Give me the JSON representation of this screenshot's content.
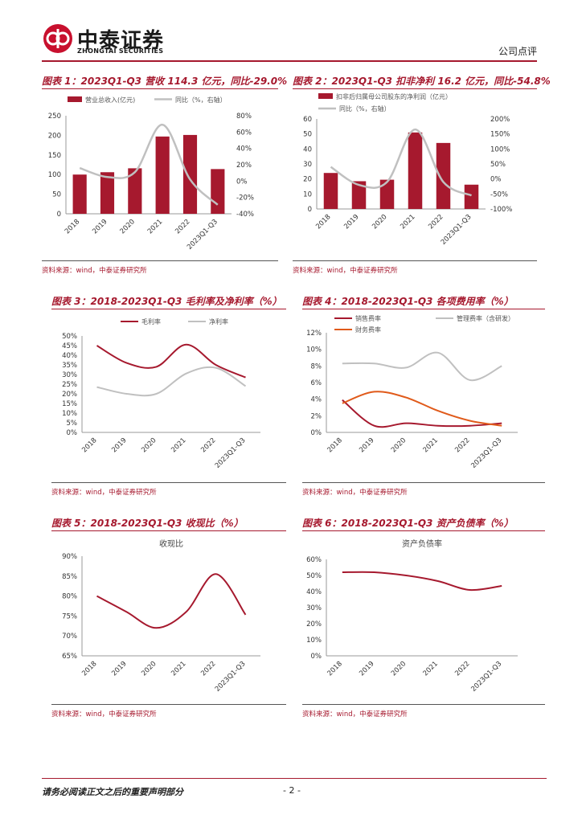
{
  "header": {
    "logo_cn": "中泰证券",
    "logo_en": "ZHONGTAI SECURITIES",
    "report_type": "公司点评"
  },
  "source_text": "资料来源：wind，中泰证券研究所",
  "footer": {
    "note": "请务必阅读正文之后的重要声明部分",
    "page": "- 2 -"
  },
  "colors": {
    "brand": "#a6192e",
    "gray": "#c0c0c0",
    "orange": "#e05a1a"
  },
  "chart_data": [
    {
      "id": "c1",
      "type": "bar-line",
      "title": "图表 1：2023Q1-Q3 营收 114.3 亿元，同比-29.0%",
      "categories": [
        "2018",
        "2019",
        "2020",
        "2021",
        "2022",
        "2023Q1-Q3"
      ],
      "series": [
        {
          "name": "营业总收入(亿元)",
          "kind": "bar",
          "axis": "left",
          "values": [
            100,
            106,
            116,
            197,
            201,
            114
          ]
        },
        {
          "name": "同比（%，右轴）",
          "kind": "line",
          "axis": "right",
          "values": [
            16,
            5,
            11,
            69,
            2,
            -29
          ]
        }
      ],
      "yleft": {
        "min": 0,
        "max": 250,
        "step": 50,
        "ticks": [
          "0",
          "50",
          "100",
          "150",
          "200",
          "250"
        ]
      },
      "yright": {
        "min": -40,
        "max": 80,
        "step": 20,
        "ticks": [
          "-40%",
          "-20%",
          "0%",
          "20%",
          "40%",
          "60%",
          "80%"
        ]
      }
    },
    {
      "id": "c2",
      "type": "bar-line",
      "title": "图表 2：2023Q1-Q3 扣非净利 16.2 亿元，同比-54.8%",
      "categories": [
        "2018",
        "2019",
        "2020",
        "2021",
        "2022",
        "2023Q1-Q3"
      ],
      "series": [
        {
          "name": "扣非后归属母公司股东的净利润（亿元）",
          "kind": "bar",
          "axis": "left",
          "values": [
            24,
            18.5,
            19.5,
            51,
            44,
            16.2
          ]
        },
        {
          "name": "同比（%，右轴）",
          "kind": "line",
          "axis": "right",
          "values": [
            40,
            -20,
            -10,
            165,
            -10,
            -55
          ]
        }
      ],
      "yleft": {
        "min": 0,
        "max": 60,
        "step": 10,
        "ticks": [
          "0",
          "10",
          "20",
          "30",
          "40",
          "50",
          "60"
        ]
      },
      "yright": {
        "min": -100,
        "max": 200,
        "step": 50,
        "ticks": [
          "-100%",
          "-50%",
          "0%",
          "50%",
          "100%",
          "150%",
          "200%"
        ]
      }
    },
    {
      "id": "c3",
      "type": "line",
      "title": "图表 3：2018-2023Q1-Q3 毛利率及净利率（%）",
      "categories": [
        "2018",
        "2019",
        "2020",
        "2021",
        "2022",
        "2023Q1-Q3"
      ],
      "series": [
        {
          "name": "毛利率",
          "color": "#a6192e",
          "values": [
            45,
            36,
            34,
            45.5,
            35,
            28.5
          ]
        },
        {
          "name": "净利率",
          "color": "#c0c0c0",
          "values": [
            23.5,
            20,
            20,
            30.5,
            33.5,
            24
          ]
        }
      ],
      "y": {
        "min": 0,
        "max": 50,
        "step": 5,
        "ticks": [
          "0%",
          "5%",
          "10%",
          "15%",
          "20%",
          "25%",
          "30%",
          "35%",
          "40%",
          "45%",
          "50%"
        ]
      }
    },
    {
      "id": "c4",
      "type": "line",
      "title": "图表 4：2018-2023Q1-Q3 各项费用率（%）",
      "categories": [
        "2018",
        "2019",
        "2020",
        "2021",
        "2022",
        "2023Q1-Q3"
      ],
      "series": [
        {
          "name": "销售费率",
          "color": "#a6192e",
          "values": [
            3.9,
            0.8,
            1.1,
            0.8,
            0.8,
            1.1
          ]
        },
        {
          "name": "管理费率（含研发）",
          "color": "#c0c0c0",
          "values": [
            8.3,
            8.3,
            7.8,
            9.6,
            6.3,
            8.0
          ]
        },
        {
          "name": "财务费率",
          "color": "#e05a1a",
          "values": [
            3.5,
            4.9,
            4.2,
            2.6,
            1.4,
            0.8
          ]
        }
      ],
      "y": {
        "min": 0,
        "max": 12,
        "step": 2,
        "ticks": [
          "0%",
          "2%",
          "4%",
          "6%",
          "8%",
          "10%",
          "12%"
        ]
      }
    },
    {
      "id": "c5",
      "type": "line",
      "title": "图表 5：2018-2023Q1-Q3 收现比（%）",
      "chart_title": "收现比",
      "categories": [
        "2018",
        "2019",
        "2020",
        "2021",
        "2022",
        "2023Q1-Q3"
      ],
      "series": [
        {
          "name": "收现比",
          "color": "#a6192e",
          "values": [
            80,
            76,
            72,
            76,
            85.5,
            75.3
          ]
        }
      ],
      "y": {
        "min": 65,
        "max": 90,
        "step": 5,
        "ticks": [
          "65%",
          "70%",
          "75%",
          "80%",
          "85%",
          "90%"
        ]
      }
    },
    {
      "id": "c6",
      "type": "line",
      "title": "图表 6：2018-2023Q1-Q3 资产负债率（%）",
      "chart_title": "资产负债率",
      "categories": [
        "2018",
        "2019",
        "2020",
        "2021",
        "2022",
        "2023Q1-Q3"
      ],
      "series": [
        {
          "name": "资产负债率",
          "color": "#a6192e",
          "values": [
            52,
            52,
            50,
            46.5,
            41,
            43.5
          ]
        }
      ],
      "y": {
        "min": 0,
        "max": 60,
        "step": 10,
        "ticks": [
          "0%",
          "10%",
          "20%",
          "30%",
          "40%",
          "50%",
          "60%"
        ]
      }
    }
  ]
}
